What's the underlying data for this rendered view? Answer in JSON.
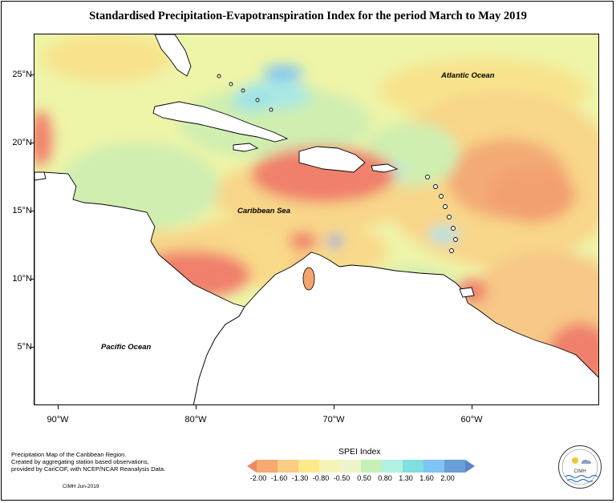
{
  "title": "Standardised Precipitation-Evapotranspiration Index for the period March to May 2019",
  "map": {
    "lat_labels": [
      "25°N",
      "20°N",
      "15°N",
      "10°N",
      "5°N"
    ],
    "lon_labels": [
      "90°W",
      "80°W",
      "70°W",
      "60°W"
    ],
    "region_labels": {
      "atlantic": "Atlantic Ocean",
      "caribbean": "Caribbean Sea",
      "pacific": "Pacific Ocean"
    }
  },
  "footnotes": {
    "line1": "Precipitation Map of the Caribbean Region.",
    "line2": "Created by aggregating station based observations,",
    "line3": "provided by CariCOF, with NCEP/NCAR Reanalysis Data.",
    "credit": "CIMH Jun-2019"
  },
  "legend": {
    "title": "SPEI Index",
    "ticks": [
      "-2.00",
      "-1.60",
      "-1.30",
      "-0.80",
      "-0.50",
      "0.50",
      "0.80",
      "1.30",
      "1.60",
      "2.00"
    ],
    "colors": [
      "#f08866",
      "#f6a970",
      "#fbcc84",
      "#fbe98a",
      "#f4f4b8",
      "#c6f0b6",
      "#b2f0e4",
      "#80dede",
      "#7ec4f4",
      "#6a9ed8",
      "#5b84c8"
    ]
  },
  "logo": {
    "text": "CIMH"
  }
}
